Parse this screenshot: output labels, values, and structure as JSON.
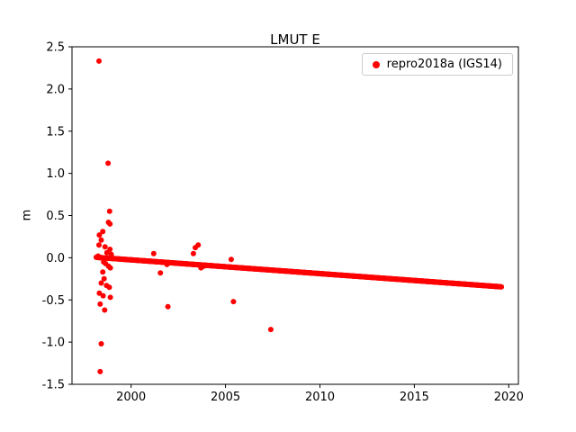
{
  "chart_data": {
    "type": "scatter",
    "title": "LMUT E",
    "xlabel": "",
    "ylabel": "m",
    "legend": {
      "label": "repro2018a (IGS14)",
      "position": "upper right"
    },
    "color": "#ff0000",
    "marker_radius": 3,
    "grid": false,
    "xlim": [
      1996.87,
      2020.51
    ],
    "ylim": [
      -1.5,
      2.5
    ],
    "xticks": [
      {
        "v": 2000,
        "label": "2000"
      },
      {
        "v": 2005,
        "label": "2005"
      },
      {
        "v": 2010,
        "label": "2010"
      },
      {
        "v": 2015,
        "label": "2015"
      },
      {
        "v": 2020,
        "label": "2020"
      }
    ],
    "yticks": [
      {
        "v": -1.5,
        "label": "-1.5"
      },
      {
        "v": -1.0,
        "label": "-1.0"
      },
      {
        "v": -0.5,
        "label": "-0.5"
      },
      {
        "v": 0.0,
        "label": "0.0"
      },
      {
        "v": 0.5,
        "label": "0.5"
      },
      {
        "v": 1.0,
        "label": "1.0"
      },
      {
        "v": 1.5,
        "label": "1.5"
      },
      {
        "v": 2.0,
        "label": "2.0"
      },
      {
        "v": 2.5,
        "label": "2.5"
      }
    ],
    "trend": {
      "x_start": 1998.15,
      "y_start": 0.005,
      "x_end": 2019.62,
      "y_end": -0.345,
      "step": 0.02
    },
    "outliers": [
      [
        1998.3,
        2.33
      ],
      [
        1998.78,
        1.12
      ],
      [
        1998.86,
        0.55
      ],
      [
        1998.8,
        0.42
      ],
      [
        1998.88,
        0.4
      ],
      [
        1998.5,
        0.31
      ],
      [
        1998.32,
        0.27
      ],
      [
        1998.42,
        0.21
      ],
      [
        1998.3,
        0.15
      ],
      [
        1998.62,
        0.13
      ],
      [
        1998.88,
        0.1
      ],
      [
        1998.72,
        0.06
      ],
      [
        1998.95,
        0.04
      ],
      [
        1998.25,
        0.02
      ],
      [
        1998.55,
        -0.05
      ],
      [
        1998.65,
        -0.07
      ],
      [
        1998.8,
        -0.1
      ],
      [
        1998.9,
        -0.12
      ],
      [
        1998.5,
        -0.17
      ],
      [
        1998.57,
        -0.25
      ],
      [
        1998.42,
        -0.3
      ],
      [
        1998.7,
        -0.33
      ],
      [
        1998.85,
        -0.35
      ],
      [
        1998.32,
        -0.42
      ],
      [
        1998.52,
        -0.45
      ],
      [
        1998.9,
        -0.47
      ],
      [
        1998.36,
        -0.55
      ],
      [
        1998.6,
        -0.62
      ],
      [
        1998.42,
        -1.02
      ],
      [
        1998.36,
        -1.35
      ],
      [
        2001.2,
        0.05
      ],
      [
        2001.55,
        -0.18
      ],
      [
        2001.9,
        -0.08
      ],
      [
        2001.95,
        -0.58
      ],
      [
        2003.3,
        0.05
      ],
      [
        2003.4,
        0.12
      ],
      [
        2003.55,
        0.15
      ],
      [
        2003.7,
        -0.12
      ],
      [
        2003.85,
        -0.1
      ],
      [
        2005.3,
        -0.02
      ],
      [
        2005.42,
        -0.52
      ],
      [
        2007.4,
        -0.85
      ]
    ]
  }
}
